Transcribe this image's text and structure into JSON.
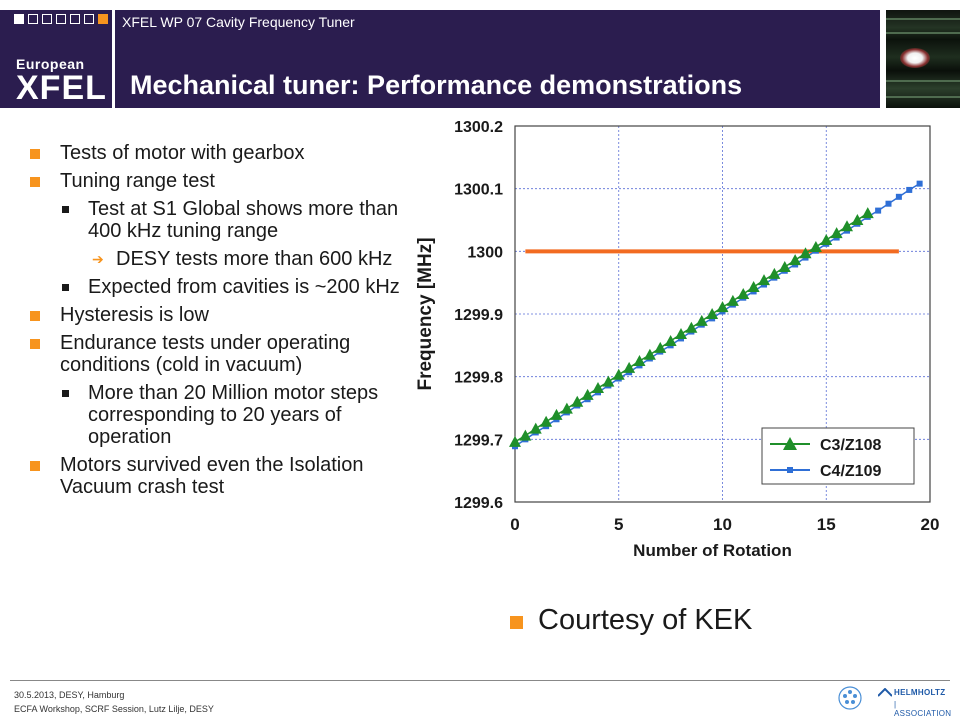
{
  "header": {
    "logo_small": "European",
    "logo_big": "XFEL",
    "subtitle": "XFEL WP 07 Cavity Frequency Tuner",
    "title": "Mechanical tuner: Performance demonstrations"
  },
  "bullets": [
    {
      "level": 1,
      "text": "Tests of motor with gearbox"
    },
    {
      "level": 1,
      "text": "Tuning range test"
    },
    {
      "level": 2,
      "text": "Test at S1 Global shows more than 400 kHz tuning range"
    },
    {
      "level": 3,
      "text": "DESY tests  more than 600 kHz"
    },
    {
      "level": 2,
      "text": "Expected from cavities is ~200 kHz"
    },
    {
      "level": 1,
      "text": "Hysteresis is low"
    },
    {
      "level": 1,
      "text": "Endurance tests under operating conditions (cold in vacuum)"
    },
    {
      "level": 2,
      "text": "More than 20 Million motor steps corresponding to 20 years of operation"
    },
    {
      "level": 1,
      "text": "Motors survived even the Isolation Vacuum crash test"
    }
  ],
  "courtesy": "Courtesy of KEK",
  "footer": {
    "line1": "30.5.2013, DESY, Hamburg",
    "line2": "ECFA Workshop, SCRF Session, Lutz Lilje, DESY",
    "helmholtz_1": "HELMHOLTZ",
    "helmholtz_2": "| ASSOCIATION"
  },
  "colors": {
    "header_bg": "#2b1d4f",
    "accent_orange": "#f7941e",
    "series_green": "#1f8f2a",
    "series_blue": "#2f6fd6",
    "reference_line": "#f26b21"
  },
  "chart_data": {
    "type": "line",
    "xlabel": "Number of Rotation",
    "ylabel": "Frequency [MHz]",
    "xlim": [
      0,
      20
    ],
    "ylim": [
      1299.6,
      1300.2
    ],
    "xticks": [
      "0",
      "5",
      "10",
      "15",
      "20"
    ],
    "yticks": [
      "1299.6",
      "1299.7",
      "1299.8",
      "1299.9",
      "1300",
      "1300.1",
      "1300.2"
    ],
    "grid": true,
    "legend_position": "bottom-right",
    "reference_line": {
      "y": 1300.0,
      "x_start": 0.5,
      "x_end": 18.5
    },
    "series": [
      {
        "name": "C3/Z108",
        "marker": "triangle",
        "x": [
          0,
          0.5,
          1,
          1.5,
          2,
          2.5,
          3,
          3.5,
          4,
          4.5,
          5,
          5.5,
          6,
          6.5,
          7,
          7.5,
          8,
          8.5,
          9,
          9.5,
          10,
          10.5,
          11,
          11.5,
          12,
          12.5,
          13,
          13.5,
          14,
          14.5,
          15,
          15.5,
          16,
          16.5,
          17
        ],
        "y": [
          1299.696,
          1299.706,
          1299.717,
          1299.728,
          1299.739,
          1299.749,
          1299.76,
          1299.771,
          1299.782,
          1299.792,
          1299.803,
          1299.814,
          1299.825,
          1299.835,
          1299.846,
          1299.857,
          1299.868,
          1299.878,
          1299.889,
          1299.9,
          1299.911,
          1299.921,
          1299.932,
          1299.943,
          1299.954,
          1299.964,
          1299.975,
          1299.986,
          1299.997,
          1300.007,
          1300.018,
          1300.029,
          1300.04,
          1300.05,
          1300.061
        ]
      },
      {
        "name": "C4/Z109",
        "marker": "square",
        "x": [
          0,
          0.5,
          1,
          1.5,
          2,
          2.5,
          3,
          3.5,
          4,
          4.5,
          5,
          5.5,
          6,
          6.5,
          7,
          7.5,
          8,
          8.5,
          9,
          9.5,
          10,
          10.5,
          11,
          11.5,
          12,
          12.5,
          13,
          13.5,
          14,
          14.5,
          15,
          15.5,
          16,
          16.5,
          17,
          17.5,
          18,
          18.5,
          19,
          19.5
        ],
        "y": [
          1299.689,
          1299.7,
          1299.711,
          1299.721,
          1299.732,
          1299.743,
          1299.754,
          1299.764,
          1299.775,
          1299.786,
          1299.797,
          1299.807,
          1299.818,
          1299.829,
          1299.84,
          1299.85,
          1299.861,
          1299.872,
          1299.883,
          1299.893,
          1299.904,
          1299.915,
          1299.926,
          1299.936,
          1299.947,
          1299.958,
          1299.969,
          1299.979,
          1299.99,
          1300.001,
          1300.012,
          1300.022,
          1300.033,
          1300.044,
          1300.055,
          1300.065,
          1300.076,
          1300.087,
          1300.098,
          1300.108
        ]
      }
    ]
  }
}
